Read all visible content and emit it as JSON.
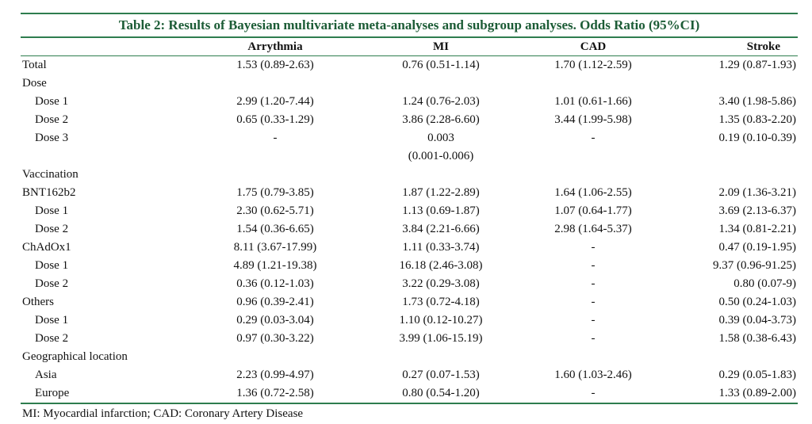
{
  "caption": "Table 2: Results of Bayesian multivariate meta-analyses and subgroup analyses. Odds Ratio (95%CI)",
  "headers": [
    "",
    "Arrythmia",
    "MI",
    "CAD",
    "Stroke"
  ],
  "rows": [
    {
      "label": "Total",
      "sub": false,
      "values": [
        "1.53 (0.89-2.63)",
        "0.76 (0.51-1.14)",
        "1.70 (1.12-2.59)",
        "1.29 (0.87-1.93)"
      ]
    },
    {
      "label": "Dose",
      "sub": false,
      "values": [
        "",
        "",
        "",
        ""
      ]
    },
    {
      "label": "Dose 1",
      "sub": true,
      "values": [
        "2.99 (1.20-7.44)",
        "1.24 (0.76-2.03)",
        "1.01 (0.61-1.66)",
        "3.40 (1.98-5.86)"
      ]
    },
    {
      "label": "Dose 2",
      "sub": true,
      "values": [
        "0.65 (0.33-1.29)",
        "3.86 (2.28-6.60)",
        "3.44 (1.99-5.98)",
        "1.35 (0.83-2.20)"
      ]
    },
    {
      "label": "Dose 3",
      "sub": true,
      "values": [
        "-",
        "0.003 (0.001-0.006)",
        "-",
        "0.19 (0.10-0.39)"
      ],
      "tall": true
    },
    {
      "label": "Vaccination",
      "sub": false,
      "values": [
        "",
        "",
        "",
        ""
      ]
    },
    {
      "label": "BNT162b2",
      "sub": false,
      "values": [
        "1.75 (0.79-3.85)",
        "1.87 (1.22-2.89)",
        "1.64 (1.06-2.55)",
        "2.09 (1.36-3.21)"
      ]
    },
    {
      "label": "Dose 1",
      "sub": true,
      "values": [
        "2.30 (0.62-5.71)",
        "1.13 (0.69-1.87)",
        "1.07 (0.64-1.77)",
        "3.69 (2.13-6.37)"
      ]
    },
    {
      "label": "Dose 2",
      "sub": true,
      "values": [
        "1.54 (0.36-6.65)",
        "3.84 (2.21-6.66)",
        "2.98 (1.64-5.37)",
        "1.34 (0.81-2.21)"
      ]
    },
    {
      "label": "ChAdOx1",
      "sub": false,
      "values": [
        "8.11 (3.67-17.99)",
        "1.11 (0.33-3.74)",
        "-",
        "0.47 (0.19-1.95)"
      ]
    },
    {
      "label": "Dose 1",
      "sub": true,
      "values": [
        "4.89 (1.21-19.38)",
        "16.18 (2.46-3.08)",
        "-",
        "9.37 (0.96-91.25)"
      ]
    },
    {
      "label": "Dose 2",
      "sub": true,
      "values": [
        "0.36 (0.12-1.03)",
        "3.22 (0.29-3.08)",
        "-",
        "0.80 (0.07-9)"
      ]
    },
    {
      "label": "Others",
      "sub": false,
      "values": [
        "0.96 (0.39-2.41)",
        "1.73 (0.72-4.18)",
        "-",
        "0.50 (0.24-1.03)"
      ]
    },
    {
      "label": "Dose 1",
      "sub": true,
      "values": [
        "0.29 (0.03-3.04)",
        "1.10 (0.12-10.27)",
        "-",
        "0.39 (0.04-3.73)"
      ]
    },
    {
      "label": "Dose 2",
      "sub": true,
      "values": [
        "0.97 (0.30-3.22)",
        "3.99 (1.06-15.19)",
        "-",
        "1.58 (0.38-6.43)"
      ]
    },
    {
      "label": "Geographical location",
      "sub": false,
      "values": [
        "",
        "",
        "",
        ""
      ]
    },
    {
      "label": "Asia",
      "sub": true,
      "values": [
        "2.23 (0.99-4.97)",
        "0.27 (0.07-1.53)",
        "1.60 (1.03-2.46)",
        "0.29 (0.05-1.83)"
      ]
    },
    {
      "label": "Europe",
      "sub": true,
      "values": [
        "1.36 (0.72-2.58)",
        "0.80 (0.54-1.20)",
        "-",
        "1.33 (0.89-2.00)"
      ]
    }
  ],
  "footnote": "MI: Myocardial infarction; CAD: Coronary Artery Disease",
  "colors": {
    "rule": "#2e7d4e",
    "caption": "#1c5c36"
  }
}
